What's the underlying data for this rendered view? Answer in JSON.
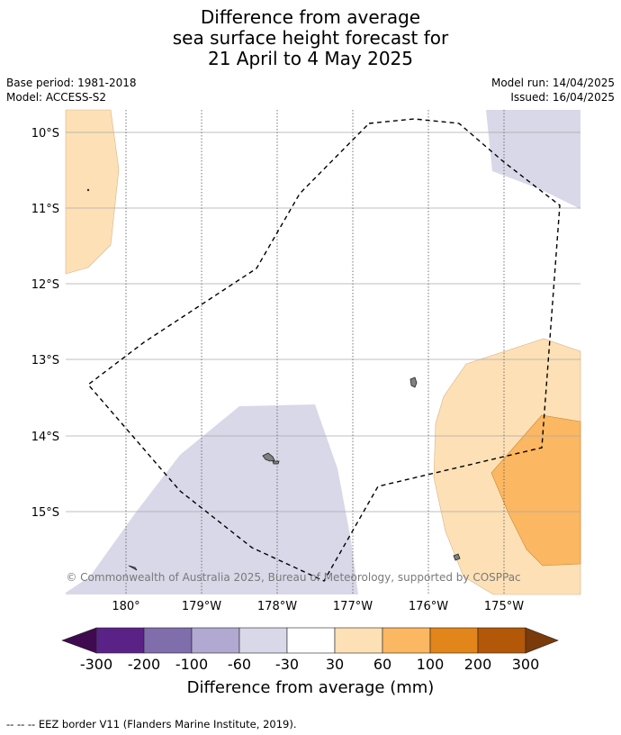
{
  "title": {
    "line1": "Difference from average",
    "line2": "sea surface height forecast for",
    "line3": "21 April to 4 May 2025"
  },
  "meta": {
    "base_period": "Base period: 1981-2018",
    "model": "Model: ACCESS-S2",
    "model_run": "Model run: 14/04/2025",
    "issued": "Issued: 16/04/2025"
  },
  "map": {
    "lat_labels": [
      "10°S",
      "11°S",
      "12°S",
      "13°S",
      "14°S",
      "15°S"
    ],
    "lon_labels": [
      "180°",
      "179°W",
      "178°W",
      "177°W",
      "176°W",
      "175°W"
    ],
    "attribution": "© Commonwealth of Australia 2025, Bureau of Meteorology, supported by COSPPac"
  },
  "colorbar": {
    "ticks": [
      "-300",
      "-200",
      "-100",
      "-60",
      "-30",
      "30",
      "60",
      "100",
      "200",
      "300"
    ],
    "colors": [
      "#3f0a4f",
      "#5a2286",
      "#7f6eab",
      "#b1a9d1",
      "#d8d8e8",
      "#ffffff",
      "#fde0b6",
      "#fbb761",
      "#e2851a",
      "#b25808",
      "#7a3a0a"
    ],
    "label": "Difference from average (mm)"
  },
  "footer": "--  --  -- EEZ border V11 (Flanders Marine Institute, 2019)."
}
